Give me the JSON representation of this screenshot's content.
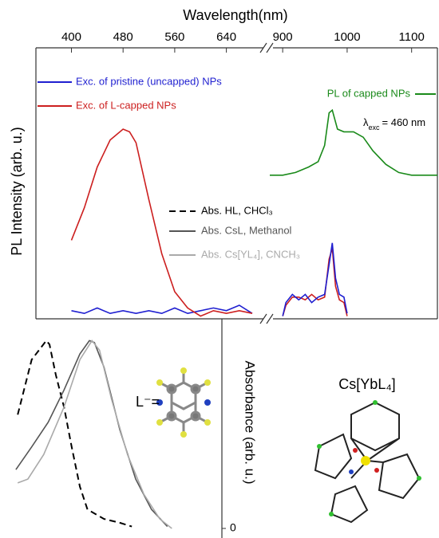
{
  "chart_data": [
    {
      "type": "line",
      "x_label": "Wavelength(nm)",
      "y_label": "PL Intensity (arb. u.)",
      "xlim": [
        345,
        685
      ],
      "ylim": [
        0,
        1
      ],
      "xticks": [
        400,
        480,
        560,
        640
      ],
      "series": [
        {
          "name": "Exc. of pristine (uncapped) NPs",
          "color": "#1f1fd0",
          "x": [
            400,
            420,
            440,
            460,
            480,
            500,
            520,
            540,
            560,
            580,
            600,
            620,
            640,
            660,
            680
          ],
          "values": [
            0.03,
            0.02,
            0.04,
            0.02,
            0.03,
            0.02,
            0.03,
            0.02,
            0.04,
            0.02,
            0.03,
            0.04,
            0.03,
            0.05,
            0.02
          ]
        },
        {
          "name": "Exc. of L-capped NPs",
          "color": "#cc1f1f",
          "x": [
            400,
            420,
            440,
            460,
            480,
            490,
            500,
            520,
            540,
            560,
            580,
            600,
            620,
            640,
            660,
            680
          ],
          "values": [
            0.29,
            0.41,
            0.56,
            0.66,
            0.7,
            0.69,
            0.65,
            0.44,
            0.24,
            0.1,
            0.04,
            0.01,
            0.03,
            0.02,
            0.03,
            0.02
          ]
        }
      ]
    },
    {
      "type": "line",
      "xlim": [
        880,
        1140
      ],
      "ylim": [
        0,
        1
      ],
      "xticks": [
        900,
        1000,
        1100
      ],
      "annotation": {
        "symbol": "λ",
        "subscript": "exc",
        "text": "= 460 nm"
      },
      "series": [
        {
          "color": "#cc1f1f",
          "x": [
            900,
            905,
            915,
            925,
            935,
            945,
            955,
            965,
            972,
            977,
            982,
            988,
            995,
            1000
          ],
          "values": [
            0.01,
            0.05,
            0.08,
            0.08,
            0.07,
            0.09,
            0.07,
            0.08,
            0.22,
            0.26,
            0.12,
            0.07,
            0.06,
            0.01
          ]
        },
        {
          "color": "#1f1fd0",
          "x": [
            900,
            905,
            915,
            925,
            935,
            945,
            955,
            965,
            972,
            977,
            982,
            988,
            995,
            1000
          ],
          "values": [
            0.01,
            0.06,
            0.09,
            0.07,
            0.09,
            0.06,
            0.08,
            0.09,
            0.2,
            0.28,
            0.15,
            0.09,
            0.08,
            0.02
          ]
        },
        {
          "name": "PL of capped NPs",
          "color": "#1a8a1a",
          "x": [
            880,
            900,
            920,
            940,
            955,
            965,
            972,
            977,
            985,
            995,
            1010,
            1025,
            1040,
            1060,
            1080,
            1100,
            1120,
            1140
          ],
          "values": [
            0.53,
            0.53,
            0.54,
            0.56,
            0.58,
            0.64,
            0.76,
            0.77,
            0.7,
            0.69,
            0.69,
            0.67,
            0.62,
            0.57,
            0.54,
            0.53,
            0.53,
            0.53
          ]
        }
      ]
    },
    {
      "type": "line",
      "y_label": "Absorbance (arb. u.)",
      "xlim": [
        290,
        640
      ],
      "ylim": [
        0,
        1
      ],
      "yticks": [
        0
      ],
      "labels": [
        "L⁻=",
        "Cs[YbL₄]"
      ],
      "series": [
        {
          "name": "Abs. HL, CHCl₃",
          "color": "#000000",
          "style": "dashed",
          "x": [
            318,
            340,
            363,
            368,
            378,
            391,
            403,
            416,
            428,
            454,
            479,
            498
          ],
          "values": [
            0.6,
            0.89,
            0.99,
            0.97,
            0.81,
            0.64,
            0.43,
            0.22,
            0.1,
            0.05,
            0.03,
            0.01
          ]
        },
        {
          "name": "Abs. CsL, Methanol",
          "color": "#555555",
          "x": [
            315,
            340,
            366,
            391,
            416,
            431,
            439,
            454,
            479,
            504,
            529,
            554
          ],
          "values": [
            0.31,
            0.43,
            0.56,
            0.73,
            0.92,
            0.99,
            0.98,
            0.85,
            0.52,
            0.26,
            0.1,
            0.01
          ]
        },
        {
          "name": "Abs. Cs[YL₄], CNCH₃",
          "color": "#aaaaaa",
          "x": [
            318,
            334,
            359,
            391,
            416,
            435,
            447,
            466,
            491,
            517,
            542,
            561
          ],
          "values": [
            0.24,
            0.26,
            0.39,
            0.64,
            0.89,
            0.99,
            0.94,
            0.68,
            0.39,
            0.18,
            0.05,
            0
          ]
        }
      ]
    }
  ]
}
